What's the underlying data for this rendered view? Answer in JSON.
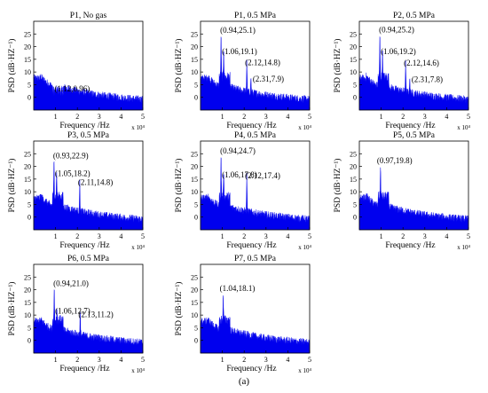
{
  "figure": {
    "caption": "(a)"
  },
  "chart_data": [
    {
      "type": "area",
      "title": "P1, No gas",
      "xlabel": "Frequency /Hz",
      "ylabel": "PSD (dB·HZ⁻¹)",
      "x_multiplier": "x 10⁴",
      "xlim": [
        0,
        5
      ],
      "ylim": [
        -5,
        30
      ],
      "xticks": [
        "1",
        "2",
        "3",
        "4",
        "5"
      ],
      "yticks": [
        "0",
        "5",
        "10",
        "15",
        "20",
        "25"
      ],
      "peaks": [
        {
          "x": 1.12,
          "y": 0.96,
          "label": "(1.12,0.96)"
        }
      ]
    },
    {
      "type": "area",
      "title": "P1, 0.5 MPa",
      "xlabel": "Frequency /Hz",
      "ylabel": "PSD (dB·HZ⁻¹)",
      "x_multiplier": "x 10⁴",
      "xlim": [
        0,
        5
      ],
      "ylim": [
        -5,
        30
      ],
      "xticks": [
        "1",
        "2",
        "3",
        "4",
        "5"
      ],
      "yticks": [
        "0",
        "5",
        "10",
        "15",
        "20",
        "25"
      ],
      "peaks": [
        {
          "x": 0.94,
          "y": 25.1,
          "label": "(0.94,25.1)"
        },
        {
          "x": 1.06,
          "y": 19.1,
          "label": "(1.06,19.1)"
        },
        {
          "x": 2.12,
          "y": 14.8,
          "label": "(2.12,14.8)"
        },
        {
          "x": 2.31,
          "y": 7.9,
          "label": "(2.31,7.9)"
        }
      ]
    },
    {
      "type": "area",
      "title": "P2, 0.5 MPa",
      "xlabel": "Frequency /Hz",
      "ylabel": "PSD (dB·HZ⁻¹)",
      "x_multiplier": "x 10⁴",
      "xlim": [
        0,
        5
      ],
      "ylim": [
        -5,
        30
      ],
      "xticks": [
        "1",
        "2",
        "3",
        "4",
        "5"
      ],
      "yticks": [
        "0",
        "5",
        "10",
        "15",
        "20",
        "25"
      ],
      "peaks": [
        {
          "x": 0.94,
          "y": 25.2,
          "label": "(0.94,25.2)"
        },
        {
          "x": 1.06,
          "y": 19.2,
          "label": "(1.06,19.2)"
        },
        {
          "x": 2.12,
          "y": 14.6,
          "label": "(2.12,14.6)"
        },
        {
          "x": 2.31,
          "y": 7.8,
          "label": "(2.31,7.8)"
        }
      ]
    },
    {
      "type": "area",
      "title": "P3, 0.5 MPa",
      "xlabel": "Frequency /Hz",
      "ylabel": "PSD (dB·HZ⁻¹)",
      "x_multiplier": "x 10⁴",
      "xlim": [
        0,
        5
      ],
      "ylim": [
        -5,
        30
      ],
      "xticks": [
        "1",
        "2",
        "3",
        "4",
        "5"
      ],
      "yticks": [
        "0",
        "5",
        "10",
        "15",
        "20",
        "25"
      ],
      "peaks": [
        {
          "x": 0.93,
          "y": 22.9,
          "label": "(0.93,22.9)"
        },
        {
          "x": 1.05,
          "y": 18.2,
          "label": "(1.05,18.2)"
        },
        {
          "x": 2.11,
          "y": 14.8,
          "label": "(2.11,14.8)"
        }
      ]
    },
    {
      "type": "area",
      "title": "P4, 0.5 MPa",
      "xlabel": "Frequency /Hz",
      "ylabel": "PSD (dB·HZ⁻¹)",
      "x_multiplier": "x 10⁴",
      "xlim": [
        0,
        5
      ],
      "ylim": [
        -5,
        30
      ],
      "xticks": [
        "1",
        "2",
        "3",
        "4",
        "5"
      ],
      "yticks": [
        "0",
        "5",
        "10",
        "15",
        "20",
        "25"
      ],
      "peaks": [
        {
          "x": 0.94,
          "y": 24.7,
          "label": "(0.94,24.7)"
        },
        {
          "x": 1.06,
          "y": 17.8,
          "label": "(1.06,17.8)"
        },
        {
          "x": 2.12,
          "y": 17.4,
          "label": "(2.12,17.4)"
        }
      ]
    },
    {
      "type": "area",
      "title": "P5, 0.5 MPa",
      "xlabel": "Frequency /Hz",
      "ylabel": "PSD (dB·HZ⁻¹)",
      "x_multiplier": "x 10⁴",
      "xlim": [
        0,
        5
      ],
      "ylim": [
        -5,
        30
      ],
      "xticks": [
        "1",
        "2",
        "3",
        "4",
        "5"
      ],
      "yticks": [
        "0",
        "5",
        "10",
        "15",
        "20",
        "25"
      ],
      "peaks": [
        {
          "x": 0.97,
          "y": 19.8,
          "label": "(0.97,19.8)"
        }
      ]
    },
    {
      "type": "area",
      "title": "P6, 0.5 MPa",
      "xlabel": "Frequency /Hz",
      "ylabel": "PSD (dB·HZ⁻¹)",
      "x_multiplier": "x 10⁴",
      "xlim": [
        0,
        5
      ],
      "ylim": [
        -5,
        30
      ],
      "xticks": [
        "1",
        "2",
        "3",
        "4",
        "5"
      ],
      "yticks": [
        "0",
        "5",
        "10",
        "15",
        "20",
        "25"
      ],
      "peaks": [
        {
          "x": 0.94,
          "y": 21.0,
          "label": "(0.94,21.0)"
        },
        {
          "x": 1.06,
          "y": 12.7,
          "label": "(1.06,12.7)"
        },
        {
          "x": 2.13,
          "y": 11.2,
          "label": "(2.13,11.2)"
        }
      ]
    },
    {
      "type": "area",
      "title": "P7,  0.5 MPa",
      "xlabel": "Frequency /Hz",
      "ylabel": "PSD (dB·HZ⁻¹)",
      "x_multiplier": "x 10⁴",
      "xlim": [
        0,
        5
      ],
      "ylim": [
        -5,
        30
      ],
      "xticks": [
        "1",
        "2",
        "3",
        "4",
        "5"
      ],
      "yticks": [
        "0",
        "5",
        "10",
        "15",
        "20",
        "25"
      ],
      "peaks": [
        {
          "x": 1.04,
          "y": 18.1,
          "label": "(1.04,18.1)"
        }
      ]
    }
  ],
  "colors": {
    "spectrum": "#0000ee",
    "axis": "#000000"
  }
}
